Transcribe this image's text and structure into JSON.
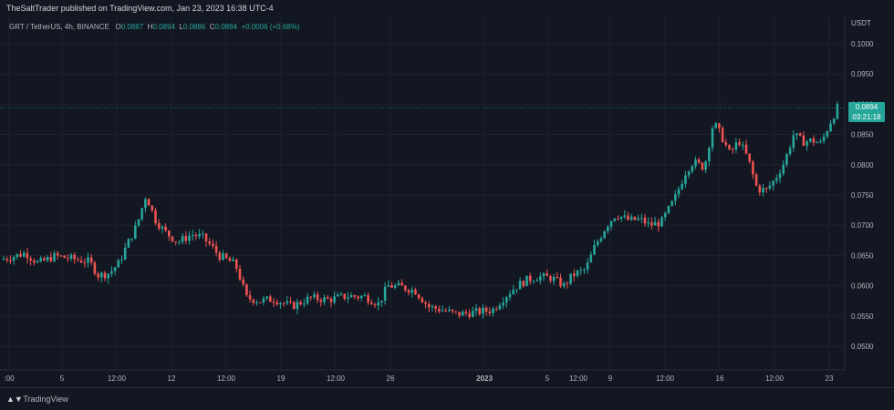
{
  "header": {
    "publish_line": "TheSaltTrader published on TradingView.com, Jan 23, 2023 16:38 UTC-4"
  },
  "legend": {
    "symbol": "GRT / TetherUS, 4h, BINANCE",
    "o_label": "O",
    "o_value": "0.0887",
    "h_label": "H",
    "h_value": "0.0894",
    "l_label": "L",
    "l_value": "0.0886",
    "c_label": "C",
    "c_value": "0.0894",
    "change": "+0.0006 (+0.68%)"
  },
  "price_tag": {
    "price": "0.0894",
    "countdown": "03:21:18"
  },
  "footer": {
    "brand": "TradingView"
  },
  "colors": {
    "background": "#131722",
    "up": "#26a69a",
    "down": "#ef5350",
    "grid": "#1e222d"
  },
  "chart_data": {
    "type": "candlestick",
    "currency": "USDT",
    "y_ticks": [
      "0.1000",
      "0.0950",
      "0.0900",
      "0.0850",
      "0.0800",
      "0.0750",
      "0.0700",
      "0.0650",
      "0.0600",
      "0.0550",
      "0.0500"
    ],
    "y_values": [
      0.1,
      0.095,
      0.09,
      0.085,
      0.08,
      0.075,
      0.07,
      0.065,
      0.06,
      0.055,
      0.05
    ],
    "x_ticks": [
      ":00",
      "5",
      "12:00",
      "12",
      "12:00",
      "19",
      "12:00",
      "26",
      "2023",
      "5",
      "12:00",
      "9",
      "12:00",
      "16",
      "12:00",
      "23"
    ],
    "ylim": [
      0.0461,
      0.1045
    ],
    "last_price": 0.0894,
    "close_path": [
      [
        0,
        0.0643
      ],
      [
        18,
        0.065
      ],
      [
        28,
        0.0654
      ],
      [
        42,
        0.0637
      ],
      [
        60,
        0.0649
      ],
      [
        70,
        0.0647
      ],
      [
        85,
        0.0643
      ],
      [
        98,
        0.064
      ],
      [
        108,
        0.0617
      ],
      [
        120,
        0.0621
      ],
      [
        130,
        0.0637
      ],
      [
        140,
        0.067
      ],
      [
        150,
        0.07
      ],
      [
        160,
        0.075
      ],
      [
        170,
        0.071
      ],
      [
        180,
        0.069
      ],
      [
        195,
        0.0672
      ],
      [
        210,
        0.0685
      ],
      [
        222,
        0.068
      ],
      [
        232,
        0.0665
      ],
      [
        240,
        0.065
      ],
      [
        250,
        0.0642
      ],
      [
        258,
        0.0635
      ],
      [
        264,
        0.061
      ],
      [
        270,
        0.058
      ],
      [
        285,
        0.0575
      ],
      [
        300,
        0.0578
      ],
      [
        320,
        0.0566
      ],
      [
        340,
        0.058
      ],
      [
        360,
        0.0577
      ],
      [
        380,
        0.0583
      ],
      [
        400,
        0.0582
      ],
      [
        415,
        0.057
      ],
      [
        425,
        0.06
      ],
      [
        440,
        0.0598
      ],
      [
        455,
        0.0592
      ],
      [
        470,
        0.0565
      ],
      [
        485,
        0.056
      ],
      [
        500,
        0.0553
      ],
      [
        520,
        0.0556
      ],
      [
        540,
        0.056
      ],
      [
        552,
        0.058
      ],
      [
        565,
        0.0598
      ],
      [
        578,
        0.061
      ],
      [
        590,
        0.0615
      ],
      [
        605,
        0.0613
      ],
      [
        618,
        0.06
      ],
      [
        628,
        0.0618
      ],
      [
        642,
        0.0627
      ],
      [
        652,
        0.0665
      ],
      [
        665,
        0.07
      ],
      [
        675,
        0.0718
      ],
      [
        690,
        0.0708
      ],
      [
        702,
        0.071
      ],
      [
        712,
        0.07
      ],
      [
        725,
        0.0705
      ],
      [
        740,
        0.0745
      ],
      [
        752,
        0.079
      ],
      [
        760,
        0.0805
      ],
      [
        772,
        0.0795
      ],
      [
        782,
        0.087
      ],
      [
        790,
        0.085
      ],
      [
        800,
        0.0818
      ],
      [
        810,
        0.084
      ],
      [
        820,
        0.081
      ],
      [
        830,
        0.076
      ],
      [
        840,
        0.0758
      ],
      [
        850,
        0.0777
      ],
      [
        860,
        0.0805
      ],
      [
        870,
        0.085
      ],
      [
        880,
        0.0838
      ],
      [
        890,
        0.084
      ],
      [
        900,
        0.0835
      ],
      [
        910,
        0.087
      ],
      [
        918,
        0.0894
      ]
    ]
  }
}
